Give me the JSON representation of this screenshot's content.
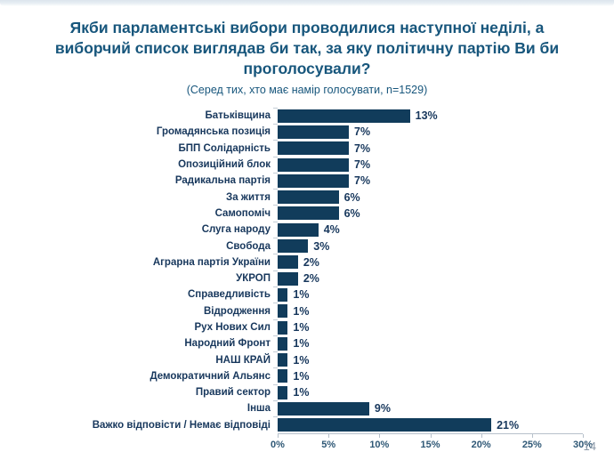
{
  "title": "Якби парламентські вибори проводилися наступної неділі, а виборчий список виглядав би так, за яку політичну партію Ви би проголосували?",
  "subtitle": "(Серед тих, хто має намір голосувати, n=1529)",
  "page": {
    "number": "14"
  },
  "colors": {
    "bar": "#113C5B",
    "title": "#17567C",
    "category_label": "#17375C",
    "value_label": "#17375C",
    "axis_line": "#B7C1CB",
    "axis_label": "#2F5876",
    "page_number": "#8A99A8"
  },
  "chart_data": {
    "type": "bar",
    "orientation": "horizontal",
    "title": "Якби парламентські вибори проводилися наступної неділі, а виборчий список виглядав би так, за яку політичну партію Ви би проголосували?",
    "subtitle": "(Серед тих, хто має намір голосувати, n=1529)",
    "categories": [
      "Батьківщина",
      "Громадянська позиція",
      "БПП Солідарність",
      "Опозиційний блок",
      "Радикальна партія",
      "За життя",
      "Самопоміч",
      "Слуга народу",
      "Свобода",
      "Аграрна партія України",
      "УКРОП",
      "Справедливість",
      "Відродження",
      "Рух Нових Сил",
      "Народний Фронт",
      "НАШ КРАЙ",
      "Демократичний Альянс",
      "Правий сектор",
      "Інша",
      "Важко відповісти / Немає відповіді"
    ],
    "values": [
      13,
      7,
      7,
      7,
      7,
      6,
      6,
      4,
      3,
      2,
      2,
      1,
      1,
      1,
      1,
      1,
      1,
      1,
      9,
      21
    ],
    "value_labels": [
      "13%",
      "7%",
      "7%",
      "7%",
      "7%",
      "6%",
      "6%",
      "4%",
      "3%",
      "2%",
      "2%",
      "1%",
      "1%",
      "1%",
      "1%",
      "1%",
      "1%",
      "1%",
      "9%",
      "21%"
    ],
    "x_ticks": [
      "0%",
      "5%",
      "10%",
      "15%",
      "20%",
      "25%",
      "30%"
    ],
    "xlim": [
      0,
      30
    ],
    "xlabel": "",
    "ylabel": "",
    "grid": false,
    "legend": false
  }
}
